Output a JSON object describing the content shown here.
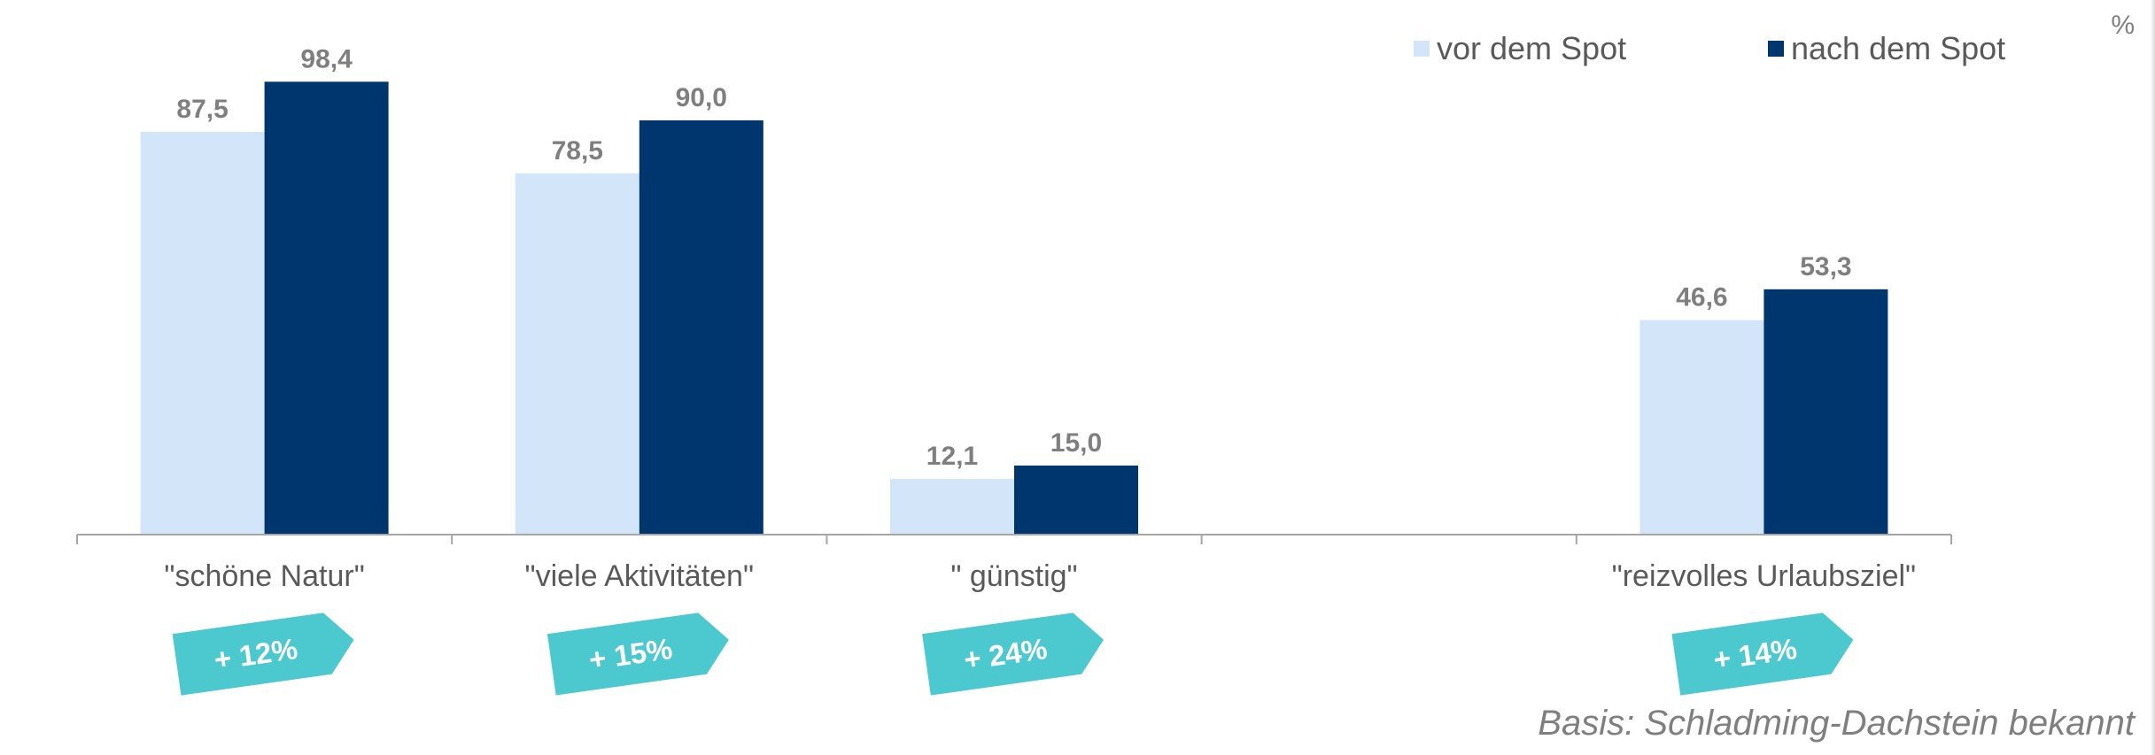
{
  "chart_data": {
    "type": "bar",
    "unit": "%",
    "categories": [
      "\"schöne Natur\"",
      "\"viele Aktivitäten\"",
      "\" günstig\"",
      "",
      "\"reizvolles Urlaubsziel\""
    ],
    "series": [
      {
        "name": "vor dem Spot",
        "color": "#d3e5f8",
        "values": [
          87.5,
          78.5,
          12.1,
          null,
          46.6
        ],
        "labels": [
          "87,5",
          "78,5",
          "12,1",
          "",
          "46,6"
        ]
      },
      {
        "name": "nach dem Spot",
        "color": "#00366e",
        "values": [
          98.4,
          90.0,
          15.0,
          null,
          53.3
        ],
        "labels": [
          "98,4",
          "90,0",
          "15,0",
          "",
          "53,3"
        ]
      }
    ],
    "ylim": [
      0,
      100
    ],
    "grid": false,
    "legend_position": "top-right",
    "badges": [
      "+ 12%",
      "+ 15%",
      "+ 24%",
      "",
      "+ 14%"
    ],
    "footnote": "Basis: Schladming-Dachstein bekannt"
  },
  "colors": {
    "badge": "#4cc8cf",
    "badge_text": "#ffffff",
    "value_label": "#7f7f7f",
    "category_label": "#595959",
    "footnote": "#7f7f7f",
    "axis": "#a6a6a6"
  }
}
